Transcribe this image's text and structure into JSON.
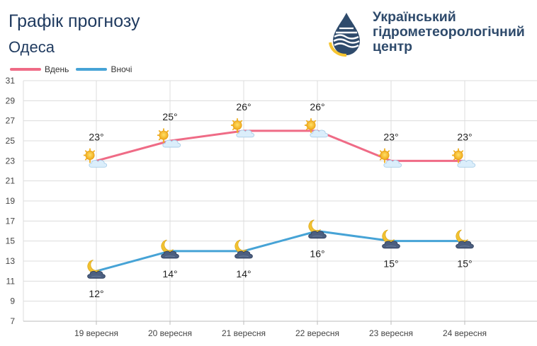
{
  "header": {
    "title": "Графік прогнозу",
    "city": "Одеса"
  },
  "logo": {
    "icon": "hydromet-drop-logo-icon",
    "lines": [
      "Український",
      "гідрометеорологічний",
      "центр"
    ]
  },
  "colors": {
    "day": "#ef6b86",
    "night": "#46a3d6",
    "grid": "#dcdcdc",
    "title": "#1f3a5f"
  },
  "chart_data": {
    "type": "line",
    "categories": [
      "19 вересня",
      "20 вересня",
      "21 вересня",
      "22 вересня",
      "23 вересня",
      "24 вересня"
    ],
    "series": [
      {
        "name": "Вдень",
        "values": [
          23,
          25,
          26,
          26,
          23,
          23
        ],
        "labels": [
          "23°",
          "25°",
          "26°",
          "26°",
          "23°",
          "23°"
        ],
        "icons": [
          "sun-cloud-icon",
          "sun-cloud-icon",
          "sun-cloud-icon",
          "sun-cloud-icon",
          "sun-cloud-icon",
          "sun-cloud-icon"
        ]
      },
      {
        "name": "Вночі",
        "values": [
          12,
          14,
          14,
          16,
          15,
          15
        ],
        "labels": [
          "12°",
          "14°",
          "14°",
          "16°",
          "15°",
          "15°"
        ],
        "icons": [
          "moon-dark-cloud-icon",
          "moon-dark-cloud-icon",
          "moon-dark-cloud-icon",
          "moon-dark-cloud-icon",
          "moon-dark-cloud-icon",
          "moon-dark-cloud-icon"
        ]
      }
    ],
    "ylim": [
      7,
      31
    ],
    "yticks": [
      "7",
      "9",
      "11",
      "13",
      "15",
      "17",
      "19",
      "21",
      "23",
      "25",
      "27",
      "29",
      "31"
    ],
    "grid": true,
    "legend_position": "top-left"
  }
}
